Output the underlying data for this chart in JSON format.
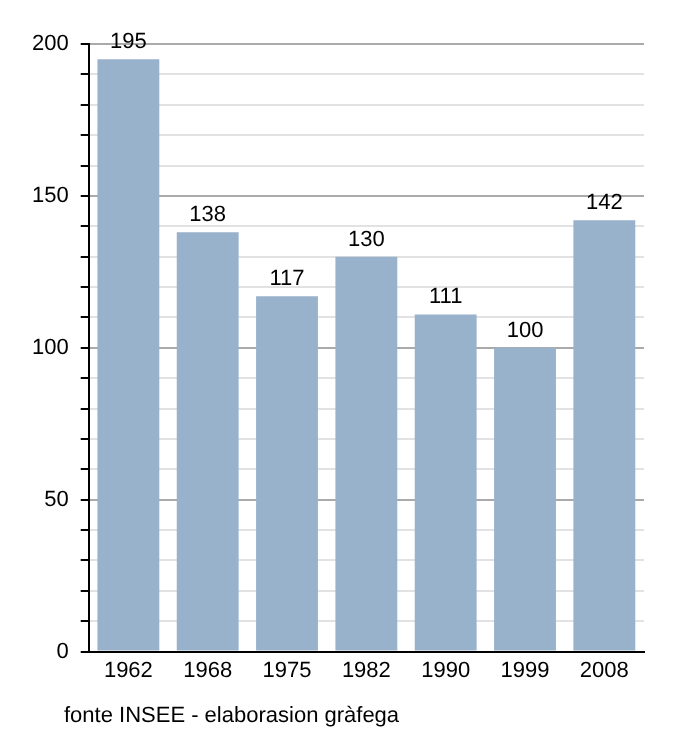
{
  "chart_data": {
    "type": "bar",
    "categories": [
      "1962",
      "1968",
      "1975",
      "1982",
      "1990",
      "1999",
      "2008"
    ],
    "values": [
      195,
      138,
      117,
      130,
      111,
      100,
      142
    ],
    "color": "#99b2cb",
    "ylim": [
      0,
      200
    ],
    "yticks": [
      0,
      {
        "value": 10,
        "label": null
      },
      {
        "value": 20,
        "label": null
      },
      {
        "value": 30,
        "label": null
      },
      {
        "value": 40,
        "label": null
      },
      50,
      {
        "value": 60,
        "label": null
      },
      {
        "value": 70,
        "label": null
      },
      {
        "value": 80,
        "label": null
      },
      {
        "value": 90,
        "label": null
      },
      100,
      {
        "value": 110,
        "label": null
      },
      {
        "value": 120,
        "label": null
      },
      {
        "value": 130,
        "label": null
      },
      {
        "value": 140,
        "label": null
      },
      150,
      {
        "value": 160,
        "label": null
      },
      {
        "value": 170,
        "label": null
      },
      {
        "value": 180,
        "label": null
      },
      {
        "value": 190,
        "label": null
      },
      200
    ],
    "grid": "y",
    "data_labels": true,
    "annotations": [
      "fonte INSEE - elaborasion gràfega"
    ]
  }
}
